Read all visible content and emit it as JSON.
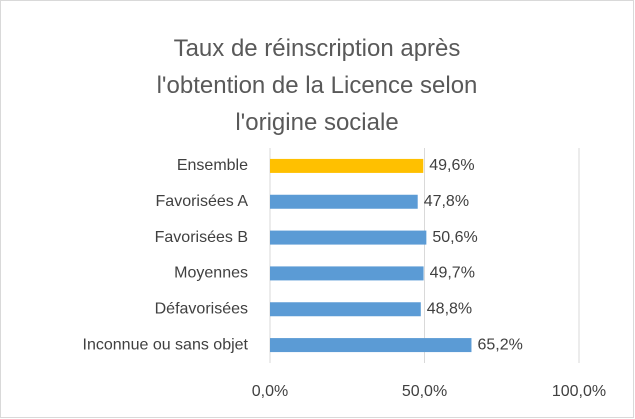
{
  "chart_data": {
    "type": "hbar",
    "title": "Taux de réinscription après l'obtention de la Licence selon l'origine sociale",
    "categories": [
      "Ensemble",
      "Favorisées A",
      "Favorisées B",
      "Moyennes",
      "Défavorisées",
      "Inconnue ou sans objet"
    ],
    "values": [
      49.6,
      47.8,
      50.6,
      49.7,
      48.8,
      65.2
    ],
    "value_labels": [
      "49,6%",
      "47,8%",
      "50,6%",
      "49,7%",
      "48,8%",
      "65,2%"
    ],
    "colors": [
      "#FFC000",
      "#5B9BD5",
      "#5B9BD5",
      "#5B9BD5",
      "#5B9BD5",
      "#5B9BD5"
    ],
    "xlim": [
      0,
      100
    ],
    "xticks": [
      {
        "value": 0,
        "label": "0,0%"
      },
      {
        "value": 50,
        "label": "50,0%"
      },
      {
        "value": 100,
        "label": "100,0%"
      }
    ],
    "grid": true
  }
}
